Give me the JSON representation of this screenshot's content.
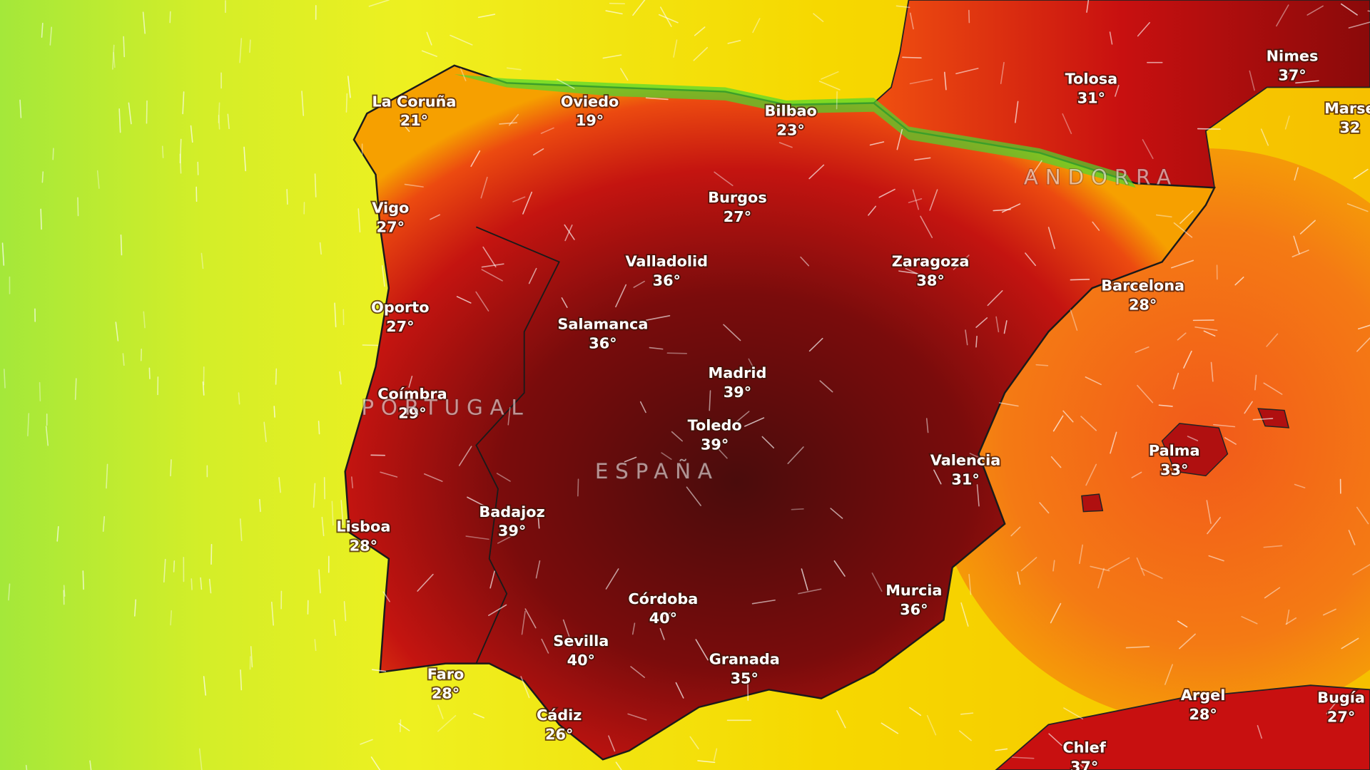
{
  "cities": [
    {
      "name": "La Coruña",
      "temp": "21°"
    },
    {
      "name": "Oviedo",
      "temp": "19°"
    },
    {
      "name": "Bilbao",
      "temp": "23°"
    },
    {
      "name": "Tolosa",
      "temp": "31°"
    },
    {
      "name": "Nimes",
      "temp": "37°"
    },
    {
      "name": "Marse",
      "temp": "32"
    },
    {
      "name": "Vigo",
      "temp": "27°"
    },
    {
      "name": "Burgos",
      "temp": "27°"
    },
    {
      "name": "Valladolid",
      "temp": "36°"
    },
    {
      "name": "Zaragoza",
      "temp": "38°"
    },
    {
      "name": "Barcelona",
      "temp": "28°"
    },
    {
      "name": "Oporto",
      "temp": "27°"
    },
    {
      "name": "Salamanca",
      "temp": "36°"
    },
    {
      "name": "Madrid",
      "temp": "39°"
    },
    {
      "name": "Coímbra",
      "temp": "29°"
    },
    {
      "name": "Toledo",
      "temp": "39°"
    },
    {
      "name": "Valencia",
      "temp": "31°"
    },
    {
      "name": "Palma",
      "temp": "33°"
    },
    {
      "name": "Badajoz",
      "temp": "39°"
    },
    {
      "name": "Lisboa",
      "temp": "28°"
    },
    {
      "name": "Murcia",
      "temp": "36°"
    },
    {
      "name": "Córdoba",
      "temp": "40°"
    },
    {
      "name": "Sevilla",
      "temp": "40°"
    },
    {
      "name": "Granada",
      "temp": "35°"
    },
    {
      "name": "Faro",
      "temp": "28°"
    },
    {
      "name": "Cádiz",
      "temp": "26°"
    },
    {
      "name": "Argel",
      "temp": "28°"
    },
    {
      "name": "Bugía",
      "temp": "27°"
    },
    {
      "name": "Chlef",
      "temp": "37°"
    }
  ],
  "regions": [
    {
      "label": "PORTUGAL"
    },
    {
      "label": "ESPAÑA"
    },
    {
      "label": "ANDORRA"
    }
  ]
}
